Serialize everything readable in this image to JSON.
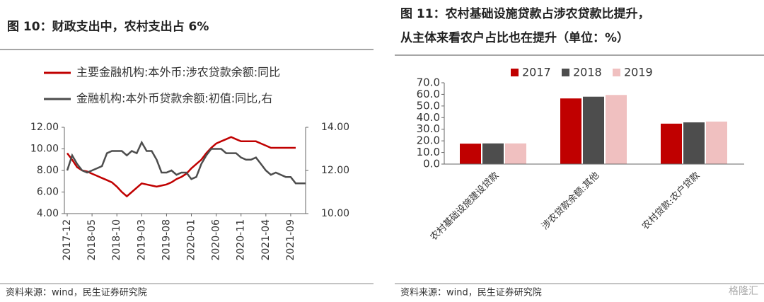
{
  "chart_data": [
    {
      "type": "line",
      "title": "图 10：财政支出中，农村支出占 6%",
      "source": "资料来源：wind，民生证券研究院",
      "categories": [
        "2017-12",
        null,
        null,
        null,
        null,
        "2018-05",
        null,
        null,
        null,
        null,
        "2018-10",
        null,
        null,
        null,
        null,
        "2019-03",
        null,
        null,
        null,
        null,
        "2019-08",
        null,
        null,
        null,
        null,
        "2020-01",
        null,
        null,
        null,
        null,
        "2020-06",
        null,
        null,
        null,
        null,
        "2020-11",
        null,
        null,
        null,
        null,
        "2021-04",
        null,
        null,
        null,
        null,
        "2021-09",
        null,
        null,
        null
      ],
      "series": [
        {
          "name": "主要金融机构:本外币:涉农贷款余额:同比",
          "color": "#c00000",
          "values": [
            9.6,
            9.0,
            8.3,
            8.0,
            7.9,
            7.7,
            7.5,
            7.3,
            7.1,
            6.9,
            6.5,
            6.0,
            5.6,
            6.0,
            6.4,
            6.8,
            6.7,
            6.6,
            6.5,
            6.6,
            6.7,
            6.9,
            7.2,
            7.4,
            7.7,
            8.2,
            8.6,
            9.0,
            9.6,
            10.1,
            10.5,
            10.7,
            10.9,
            11.1,
            10.9,
            10.7,
            10.7,
            10.7,
            10.7,
            10.5,
            10.3,
            10.1,
            10.1,
            10.1,
            10.1,
            10.1,
            10.1,
            null,
            null
          ]
        },
        {
          "name": "金融机构:本外币贷款余额:初值:同比,右",
          "color": "#4d4d4d",
          "axis": "y2",
          "values": [
            12.0,
            12.7,
            12.3,
            12.0,
            11.9,
            12.0,
            12.1,
            12.2,
            12.8,
            12.9,
            12.9,
            12.9,
            12.7,
            12.9,
            12.8,
            13.3,
            12.9,
            12.9,
            12.5,
            11.9,
            11.9,
            12.0,
            11.8,
            11.9,
            11.9,
            11.6,
            11.7,
            12.3,
            12.7,
            13.0,
            13.0,
            13.0,
            12.8,
            12.8,
            12.8,
            12.6,
            12.5,
            12.5,
            12.6,
            12.3,
            12.0,
            11.8,
            11.9,
            11.8,
            11.7,
            11.7,
            11.4,
            11.4,
            11.4
          ]
        }
      ],
      "ylim": [
        4,
        12
      ],
      "yticks": [
        {
          "value": 4,
          "label": "4.00"
        },
        {
          "value": 6,
          "label": "6.00"
        },
        {
          "value": 8,
          "label": "8.00"
        },
        {
          "value": 10,
          "label": "10.00"
        },
        {
          "value": 12,
          "label": "12.00"
        }
      ],
      "y2lim": [
        10,
        14
      ],
      "y2ticks": [
        {
          "value": 10,
          "label": "10.00"
        },
        {
          "value": 12,
          "label": "12.00"
        },
        {
          "value": 14,
          "label": "14.00"
        }
      ],
      "legend": "top"
    },
    {
      "type": "bar",
      "title": "图 11：农村基础设施贷款占涉农贷款比提升，从主体来看农户占比也在提升（单位：%）",
      "source": "资料来源：wind，民生证券研究院",
      "watermark": "格隆汇",
      "categories": [
        "农村基础设施建设贷款",
        "涉农贷款余额:其他",
        "农村贷款:农户贷款"
      ],
      "series": [
        {
          "name": "2017",
          "color": "#c00000",
          "values": [
            17.6,
            56.5,
            34.8
          ]
        },
        {
          "name": "2018",
          "color": "#4d4d4d",
          "values": [
            17.8,
            58.0,
            35.9
          ]
        },
        {
          "name": "2019",
          "color": "#f0c0c0",
          "values": [
            17.8,
            59.5,
            36.6
          ]
        }
      ],
      "ylim": [
        0,
        70
      ],
      "yticks": [
        {
          "value": 0,
          "label": "0.0"
        },
        {
          "value": 10,
          "label": "10.0"
        },
        {
          "value": 20,
          "label": "20.0"
        },
        {
          "value": 30,
          "label": "30.0"
        },
        {
          "value": 40,
          "label": "40.0"
        },
        {
          "value": 50,
          "label": "50.0"
        },
        {
          "value": 60,
          "label": "60.0"
        },
        {
          "value": 70,
          "label": "70.0"
        }
      ],
      "legend": "top"
    }
  ]
}
